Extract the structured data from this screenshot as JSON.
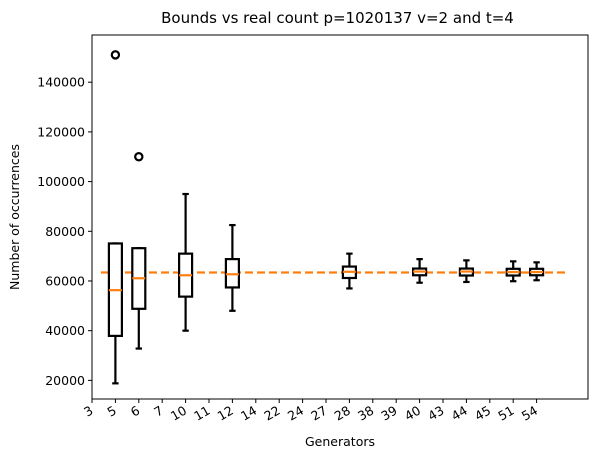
{
  "chart_data": {
    "type": "box",
    "title": "Bounds vs real count p=1020137 v=2 and t=4",
    "xlabel": "Generators",
    "ylabel": "Number of occurrences",
    "ylim": [
      12500,
      159000
    ],
    "yticks": [
      20000,
      40000,
      60000,
      80000,
      100000,
      120000,
      140000
    ],
    "grid": false,
    "xticks": [
      "3",
      "5",
      "6",
      "7",
      "10",
      "11",
      "12",
      "14",
      "22",
      "24",
      "27",
      "28",
      "38",
      "39",
      "40",
      "43",
      "44",
      "45",
      "51",
      "54"
    ],
    "reference_line": {
      "value": 63400,
      "style": "dashed",
      "color": "#ff7f0e"
    },
    "boxes": [
      {
        "generator": "5",
        "whislo": 18800,
        "q1": 37900,
        "med": 56300,
        "q3": 75100,
        "whishi": 75100,
        "fliers": [
          151000
        ]
      },
      {
        "generator": "6",
        "whislo": 32800,
        "q1": 48800,
        "med": 61100,
        "q3": 73200,
        "whishi": 73200,
        "fliers": [
          110000
        ]
      },
      {
        "generator": "10",
        "whislo": 40000,
        "q1": 53700,
        "med": 62300,
        "q3": 71000,
        "whishi": 95000,
        "fliers": []
      },
      {
        "generator": "12",
        "whislo": 48000,
        "q1": 57400,
        "med": 62700,
        "q3": 68800,
        "whishi": 82500,
        "fliers": []
      },
      {
        "generator": "28",
        "whislo": 57000,
        "q1": 61200,
        "med": 63700,
        "q3": 65800,
        "whishi": 71000,
        "fliers": []
      },
      {
        "generator": "40",
        "whislo": 59300,
        "q1": 62300,
        "med": 63800,
        "q3": 65000,
        "whishi": 68800,
        "fliers": []
      },
      {
        "generator": "44",
        "whislo": 59600,
        "q1": 62200,
        "med": 63800,
        "q3": 65000,
        "whishi": 68300,
        "fliers": []
      },
      {
        "generator": "51",
        "whislo": 59900,
        "q1": 62200,
        "med": 63600,
        "q3": 64900,
        "whishi": 67900,
        "fliers": []
      },
      {
        "generator": "54",
        "whislo": 60300,
        "q1": 62300,
        "med": 63600,
        "q3": 64900,
        "whishi": 67500,
        "fliers": []
      }
    ],
    "colors": {
      "box": "#000000",
      "median": "#ff7f0e",
      "reference": "#ff7f0e"
    }
  }
}
